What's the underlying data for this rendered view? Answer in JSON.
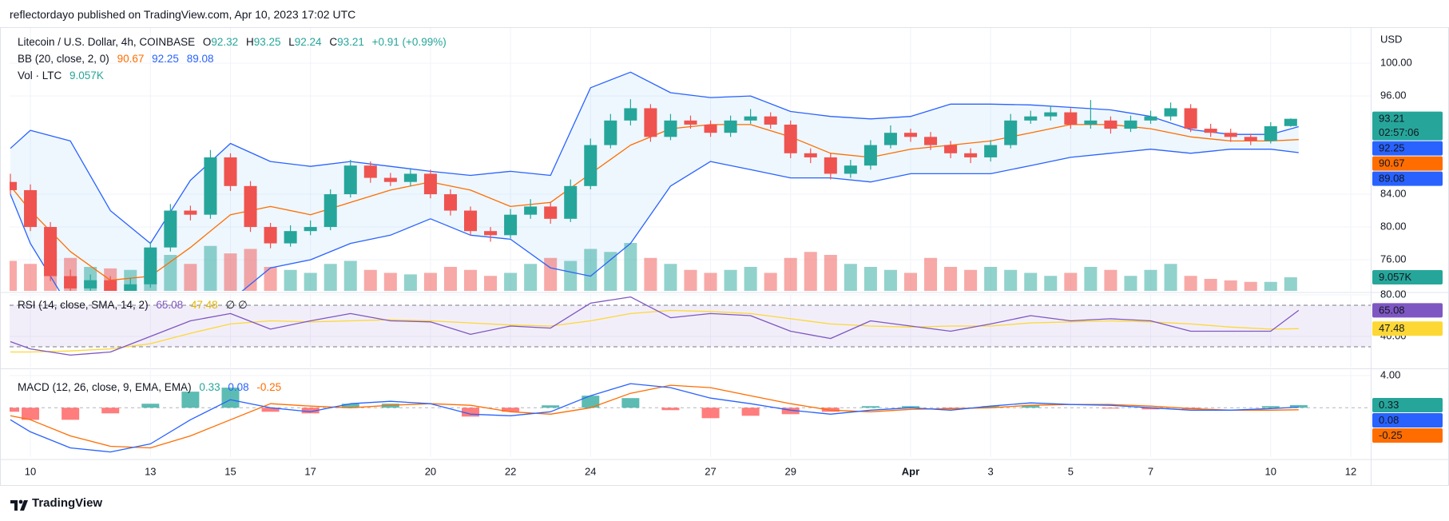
{
  "header": {
    "publisher": "reflectordayo published on TradingView.com, Apr 10, 2023 17:02 UTC"
  },
  "footer": {
    "logo": "TradingView"
  },
  "chart_data": [
    {
      "type": "candlestick",
      "title": "Litecoin / U.S. Dollar, 4h, COINBASE",
      "ohlc_labels": [
        "O",
        "H",
        "L",
        "C"
      ],
      "change": "+0.91 (+0.99%)",
      "y_axis_label": "USD",
      "countdown": "02:57:06",
      "up_color": "#26a69a",
      "down_color": "#ef5350",
      "grid": true,
      "xlim": [
        -0.52,
        33.5
      ],
      "xticks": [
        {
          "value": 0,
          "label": "10"
        },
        {
          "value": 3,
          "label": "13"
        },
        {
          "value": 5,
          "label": "15"
        },
        {
          "value": 7,
          "label": "17"
        },
        {
          "value": 10,
          "label": "20"
        },
        {
          "value": 12,
          "label": "22"
        },
        {
          "value": 14,
          "label": "24"
        },
        {
          "value": 17,
          "label": "27"
        },
        {
          "value": 19,
          "label": "29"
        },
        {
          "value": 22,
          "label": "Apr"
        },
        {
          "value": 24,
          "label": "3"
        },
        {
          "value": 26,
          "label": "5"
        },
        {
          "value": 28,
          "label": "7"
        },
        {
          "value": 31,
          "label": "10"
        },
        {
          "value": 33,
          "label": "12"
        }
      ],
      "ylim": [
        72.2,
        104.3
      ],
      "yticks": [
        {
          "value": 100,
          "label": "100.00"
        },
        {
          "value": 96,
          "label": "96.00"
        },
        {
          "value": 84,
          "label": "84.00"
        },
        {
          "value": 80,
          "label": "80.00"
        },
        {
          "value": 76,
          "label": "76.00"
        }
      ],
      "x": [
        -0.5,
        0,
        0.5,
        1,
        1.5,
        2,
        2.5,
        3,
        3.5,
        4,
        4.5,
        5,
        5.5,
        6,
        6.5,
        7,
        7.5,
        8,
        8.5,
        9,
        9.5,
        10,
        10.5,
        11,
        11.5,
        12,
        12.5,
        13,
        13.5,
        14,
        14.5,
        15,
        15.5,
        16,
        16.5,
        17,
        17.5,
        18,
        18.5,
        19,
        19.5,
        20,
        20.5,
        21,
        21.5,
        22,
        22.5,
        23,
        23.5,
        24,
        24.5,
        25,
        25.5,
        26,
        26.5,
        27,
        27.5,
        28,
        28.5,
        29,
        29.5,
        30,
        30.5,
        31,
        31.5
      ],
      "candles": [
        [
          85.5,
          86.5,
          84,
          84.5
        ],
        [
          84.5,
          85.2,
          79.5,
          80
        ],
        [
          80,
          80.6,
          73.4,
          74
        ],
        [
          74,
          74.8,
          71.8,
          72.5
        ],
        [
          72.5,
          74.2,
          72,
          73.5
        ],
        [
          73.5,
          74,
          71.4,
          72
        ],
        [
          72,
          73.8,
          71.6,
          73
        ],
        [
          73,
          78.2,
          72.6,
          77.5
        ],
        [
          77.5,
          82.8,
          77,
          82
        ],
        [
          82,
          82.6,
          80.8,
          81.5
        ],
        [
          81.5,
          89.4,
          81,
          88.5
        ],
        [
          88.5,
          89,
          84.4,
          85
        ],
        [
          85,
          85.6,
          79.4,
          80
        ],
        [
          80,
          80.5,
          77.4,
          78
        ],
        [
          78,
          80.2,
          77.6,
          79.5
        ],
        [
          79.5,
          80.8,
          79,
          80
        ],
        [
          80,
          84.6,
          79.6,
          84
        ],
        [
          84,
          88.2,
          83.6,
          87.5
        ],
        [
          87.5,
          88,
          85.4,
          86
        ],
        [
          86,
          86.6,
          85,
          85.5
        ],
        [
          85.5,
          87.2,
          85,
          86.5
        ],
        [
          86.5,
          87,
          83.5,
          84
        ],
        [
          84,
          84.6,
          81.4,
          82
        ],
        [
          82,
          82.5,
          79,
          79.5
        ],
        [
          79.5,
          80,
          78.2,
          79
        ],
        [
          79,
          82.2,
          78.6,
          81.5
        ],
        [
          81.5,
          83.4,
          81,
          82.5
        ],
        [
          82.5,
          83,
          80.4,
          81
        ],
        [
          81,
          85.8,
          80.6,
          85
        ],
        [
          85,
          90.8,
          84.6,
          90
        ],
        [
          90,
          93.8,
          89.6,
          93
        ],
        [
          93,
          95.6,
          92.4,
          94.5
        ],
        [
          94.5,
          95,
          90.4,
          91
        ],
        [
          91,
          93.8,
          90.6,
          93
        ],
        [
          93,
          93.6,
          92,
          92.5
        ],
        [
          92.5,
          93,
          91,
          91.5
        ],
        [
          91.5,
          93.6,
          91,
          93
        ],
        [
          93,
          94.4,
          92.6,
          93.5
        ],
        [
          93.5,
          94,
          92,
          92.5
        ],
        [
          92.5,
          93,
          88.4,
          89
        ],
        [
          89,
          89.6,
          87.8,
          88.5
        ],
        [
          88.5,
          89,
          85.8,
          86.5
        ],
        [
          86.5,
          88.2,
          86,
          87.5
        ],
        [
          87.5,
          90.6,
          87,
          90
        ],
        [
          90,
          92.4,
          89.6,
          91.5
        ],
        [
          91.5,
          92,
          90.4,
          91
        ],
        [
          91,
          91.6,
          89.4,
          90
        ],
        [
          90,
          90.5,
          88.4,
          89
        ],
        [
          89,
          89.6,
          87.8,
          88.5
        ],
        [
          88.5,
          90.6,
          88,
          90
        ],
        [
          90,
          93.8,
          89.6,
          93
        ],
        [
          93,
          94.2,
          92.6,
          93.5
        ],
        [
          93.5,
          94.8,
          93,
          94
        ],
        [
          94,
          94.5,
          92,
          92.5
        ],
        [
          92.5,
          95.5,
          92,
          93
        ],
        [
          93,
          93.5,
          91.4,
          92
        ],
        [
          92,
          93.6,
          91.6,
          93
        ],
        [
          93,
          94.2,
          92.6,
          93.5
        ],
        [
          93.5,
          95.2,
          93,
          94.5
        ],
        [
          94.5,
          95,
          91.6,
          92
        ],
        [
          92,
          92.6,
          91,
          91.5
        ],
        [
          91.5,
          92,
          90.4,
          91
        ],
        [
          91,
          91.4,
          90,
          90.5
        ],
        [
          90.5,
          92.8,
          90.2,
          92.3
        ],
        [
          92.32,
          93.25,
          92.24,
          93.21
        ]
      ],
      "bollinger": {
        "name": "BB (20, close, 2, 0)",
        "basis_color": "#ff6d00",
        "band_color": "#2962ff",
        "fill_color": "rgba(33,150,243,0.08)",
        "x": [
          -0.5,
          0,
          1,
          2,
          3,
          4,
          5,
          6,
          7,
          8,
          9,
          10,
          11,
          12,
          13,
          14,
          15,
          16,
          17,
          18,
          19,
          20,
          21,
          22,
          23,
          24,
          25,
          26,
          27,
          28,
          29,
          30,
          31,
          31.7
        ],
        "basis": [
          85,
          82,
          77,
          73.5,
          74,
          77.5,
          81.5,
          82.5,
          81.5,
          83,
          84.5,
          85.5,
          84.5,
          82.5,
          83,
          86.5,
          90,
          92,
          92.5,
          92.5,
          91,
          89,
          88.5,
          89.5,
          90,
          90.5,
          91.5,
          92.5,
          92.5,
          92,
          91,
          90.5,
          90.5,
          90.67
        ],
        "upper": [
          89.6,
          91.8,
          90.5,
          82,
          78,
          85.7,
          90.2,
          88,
          87.4,
          88,
          87.4,
          86.8,
          86.3,
          86.8,
          86.3,
          97,
          98.9,
          96.4,
          95.8,
          96,
          94.1,
          93.5,
          93.2,
          93.5,
          95,
          95,
          94.9,
          94.6,
          94.3,
          93.5,
          91.9,
          91.3,
          91.3,
          92.25
        ],
        "lower": [
          84,
          78,
          70,
          67,
          68,
          69,
          71,
          75,
          76,
          78,
          79,
          81,
          79,
          78.5,
          75,
          74,
          78,
          85,
          88,
          87,
          86,
          86,
          85.5,
          86.5,
          86.5,
          86.5,
          87.5,
          88.5,
          89,
          89.5,
          89,
          89.5,
          89.5,
          89.08
        ]
      },
      "volume": {
        "name": "Vol · LTC",
        "ylim": [
          0,
          80
        ],
        "up_color": "rgba(38,166,154,0.5)",
        "down_color": "rgba(239,83,80,0.5)",
        "values": [
          20,
          18,
          25,
          22,
          16,
          15,
          14,
          20,
          24,
          18,
          30,
          25,
          28,
          16,
          14,
          12,
          18,
          20,
          14,
          12,
          11,
          12,
          16,
          14,
          10,
          12,
          18,
          22,
          20,
          28,
          26,
          32,
          22,
          18,
          14,
          12,
          14,
          16,
          12,
          22,
          26,
          24,
          18,
          16,
          14,
          12,
          22,
          16,
          14,
          16,
          14,
          12,
          10,
          12,
          16,
          14,
          10,
          14,
          18,
          10,
          8,
          7,
          6,
          6,
          9.057
        ],
        "last_label": "9.057K"
      }
    },
    {
      "type": "rsi",
      "name": "RSI (14, close, SMA, 14, 2)",
      "extra": "∅ ∅",
      "color": "#7e57c2",
      "ma_color": "#fdd835",
      "band_fill": "rgba(126,87,194,0.1)",
      "ylim": [
        10,
        80.8
      ],
      "yticks": [
        {
          "value": 80,
          "label": "80.00"
        },
        {
          "value": 40,
          "label": "40.00"
        }
      ],
      "levels": [
        70,
        30
      ],
      "x": [
        -0.5,
        0,
        1,
        2,
        3,
        4,
        5,
        6,
        7,
        8,
        9,
        10,
        11,
        12,
        13,
        14,
        15,
        16,
        17,
        18,
        19,
        20,
        21,
        22,
        23,
        24,
        25,
        26,
        27,
        28,
        29,
        30,
        31,
        31.7
      ],
      "values": [
        35,
        28,
        22,
        25,
        40,
        55,
        62,
        47,
        55,
        62,
        55,
        54,
        42,
        50,
        48,
        72,
        78,
        58,
        62,
        60,
        45,
        38,
        55,
        50,
        45,
        52,
        60,
        55,
        57,
        55,
        45,
        45,
        45,
        65.08
      ],
      "ma_values": [
        25,
        25,
        26,
        28,
        33,
        43,
        52,
        55,
        54,
        55,
        56,
        55,
        53,
        51,
        50,
        55,
        62,
        65,
        64,
        62,
        57,
        52,
        50,
        49,
        50,
        50,
        53,
        54,
        55,
        54,
        52,
        49,
        47,
        47.48
      ]
    },
    {
      "type": "macd",
      "name": "MACD (12, 26, close, 9, EMA, EMA)",
      "macd_color": "#2962ff",
      "signal_color": "#ff6d00",
      "hist_up_color": "#26a69a",
      "hist_down_color": "#ff5252",
      "ylim": [
        -6.14,
        4.7
      ],
      "yticks": [
        {
          "value": 4,
          "label": "4.00"
        }
      ],
      "levels": [
        0
      ],
      "x": [
        -0.5,
        0,
        1,
        2,
        3,
        4,
        5,
        6,
        7,
        8,
        9,
        10,
        11,
        12,
        13,
        14,
        15,
        16,
        17,
        18,
        19,
        20,
        21,
        22,
        23,
        24,
        25,
        26,
        27,
        28,
        29,
        30,
        31,
        31.7
      ],
      "histogram": [
        -0.5,
        -1.5,
        -1.5,
        -0.7,
        0.5,
        2,
        2.5,
        -0.5,
        -0.7,
        0.5,
        0.5,
        0,
        -1.1,
        -0.5,
        0.3,
        1.5,
        1.2,
        -0.3,
        -1.3,
        -1,
        -0.8,
        -0.5,
        0.2,
        0.2,
        -0.2,
        0.2,
        0.3,
        0,
        -0.1,
        -0.2,
        -0.2,
        0,
        0.2,
        0.33
      ],
      "macd": [
        -1.5,
        -3,
        -5,
        -5.5,
        -4.5,
        -1.5,
        1,
        0,
        -0.5,
        0.5,
        0.8,
        0.5,
        -0.8,
        -1,
        -0.5,
        1.5,
        3,
        2.5,
        1.2,
        0.5,
        -0.3,
        -0.8,
        -0.3,
        0,
        -0.3,
        0.2,
        0.6,
        0.4,
        0.3,
        0,
        -0.3,
        -0.3,
        -0.1,
        0.08
      ],
      "signal": [
        -1,
        -1.5,
        -3.5,
        -4.8,
        -5,
        -3.5,
        -1.5,
        0.5,
        0.2,
        0,
        0.3,
        0.5,
        0.3,
        -0.5,
        -0.8,
        0,
        1.8,
        2.8,
        2.5,
        1.5,
        0.5,
        -0.3,
        -0.5,
        -0.2,
        -0.1,
        0,
        0.3,
        0.4,
        0.4,
        0.2,
        -0.1,
        -0.3,
        -0.3,
        -0.25
      ]
    }
  ]
}
